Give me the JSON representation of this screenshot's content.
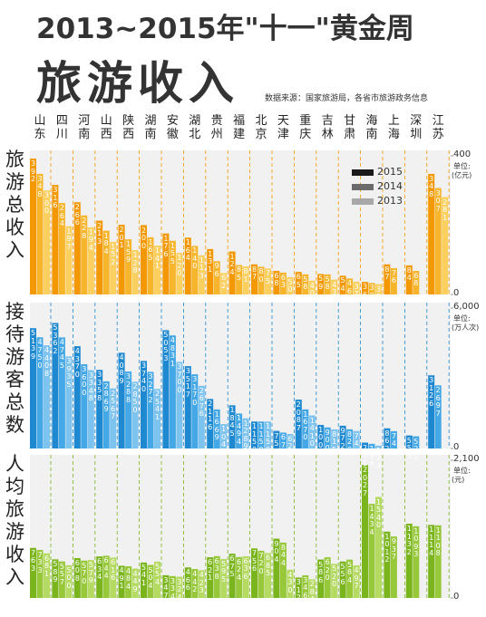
{
  "header": {
    "title": "2013~2015年\"十一\"黄金周",
    "subtitle": "旅游收入",
    "source": "数据来源：国家旅游局，各省市旅游政务信息"
  },
  "chart_data": [
    {
      "type": "bar",
      "title": "旅游总收入",
      "unit_label": "单位:",
      "unit": "(亿元)",
      "categories": [
        "山东",
        "四川",
        "河南",
        "山西",
        "陕西",
        "湖南",
        "安徽",
        "湖北",
        "贵州",
        "福建",
        "北京",
        "天津",
        "重庆",
        "吉林",
        "甘肃",
        "海南",
        "上海",
        "深圳",
        "江苏"
      ],
      "legend_colors": [
        "#1a1a1a",
        "#6b6b6b",
        "#a8a8a8"
      ],
      "ylim": [
        0,
        400
      ],
      "yticks": [
        0,
        400
      ],
      "series": [
        {
          "name": "2015",
          "color": "#f39800",
          "values": [
            392,
            316,
            266,
            213,
            201,
            200,
            176,
            164,
            131,
            124,
            87,
            68,
            65,
            59,
            54,
            36,
            87,
            84,
            348
          ]
        },
        {
          "name": "2014",
          "color": "#f7b52c",
          "values": [
            348,
            264,
            228,
            184,
            159,
            165,
            155,
            140,
            96,
            85,
            80,
            63,
            58,
            58,
            46,
            33,
            76,
            68,
            307
          ]
        },
        {
          "name": "2013",
          "color": "#fbd05f",
          "values": [
            300,
            197,
            194,
            152,
            128,
            141,
            120,
            113,
            62,
            81,
            75,
            50,
            40,
            43,
            37,
            30,
            null,
            null,
            281
          ]
        }
      ]
    },
    {
      "type": "bar",
      "title": "接待游客总数",
      "unit_label": "单位:",
      "unit": "(万人次)",
      "ylim": [
        0,
        6000
      ],
      "yticks": [
        0,
        {
          "value": 6000,
          "label": "6,000"
        }
      ],
      "series": [
        {
          "name": "2015",
          "color": "#1e88d0",
          "values": [
            5139,
            5362,
            4370,
            3358,
            4089,
            3740,
            5053,
            3517,
            2116,
            1845,
            1150,
            752,
            2087,
            1007,
            972,
            251,
            862,
            555,
            3126
          ]
        },
        {
          "name": "2014",
          "color": "#45a8e6",
          "values": [
            4750,
            4745,
            3600,
            2869,
            3288,
            3272,
            4831,
            3170,
            1669,
            1494,
            1150,
            678,
            1670,
            900,
            820,
            198,
            740,
            520,
            2697
          ]
        },
        {
          "name": "2013",
          "color": "#7dc3f0",
          "values": [
            4408,
            3935,
            3348,
            2567,
            2850,
            2541,
            3700,
            2676,
            1043,
            1289,
            1150,
            620,
            1410,
            815,
            745,
            124,
            null,
            null,
            null
          ]
        }
      ]
    },
    {
      "type": "bar",
      "title": "人均旅游收入",
      "unit_label": "单位:",
      "unit": "(元)",
      "ylim": [
        0,
        2100
      ],
      "yticks": [
        0,
        {
          "value": 2100,
          "label": "2,100"
        }
      ],
      "series": [
        {
          "name": "2015",
          "color": "#7ab51d",
          "values": [
            763,
            589,
            608,
            634,
            491,
            541,
            347,
            466,
            621,
            675,
            756,
            904,
            312,
            586,
            556,
            2027,
            1012,
            1132,
            1114
          ]
        },
        {
          "name": "2014",
          "color": "#96c83a",
          "values": [
            733,
            557,
            570,
            644,
            484,
            504,
            334,
            442,
            638,
            624,
            720,
            844,
            346,
            620,
            584,
            1434,
            937,
            1093,
            1108
          ]
        },
        {
          "name": "2013",
          "color": "#b5da62",
          "values": [
            681,
            500,
            579,
            616,
            449,
            554,
            324,
            423,
            595,
            636,
            685,
            430,
            284,
            520,
            497,
            1540,
            null,
            null,
            null
          ]
        }
      ]
    }
  ]
}
